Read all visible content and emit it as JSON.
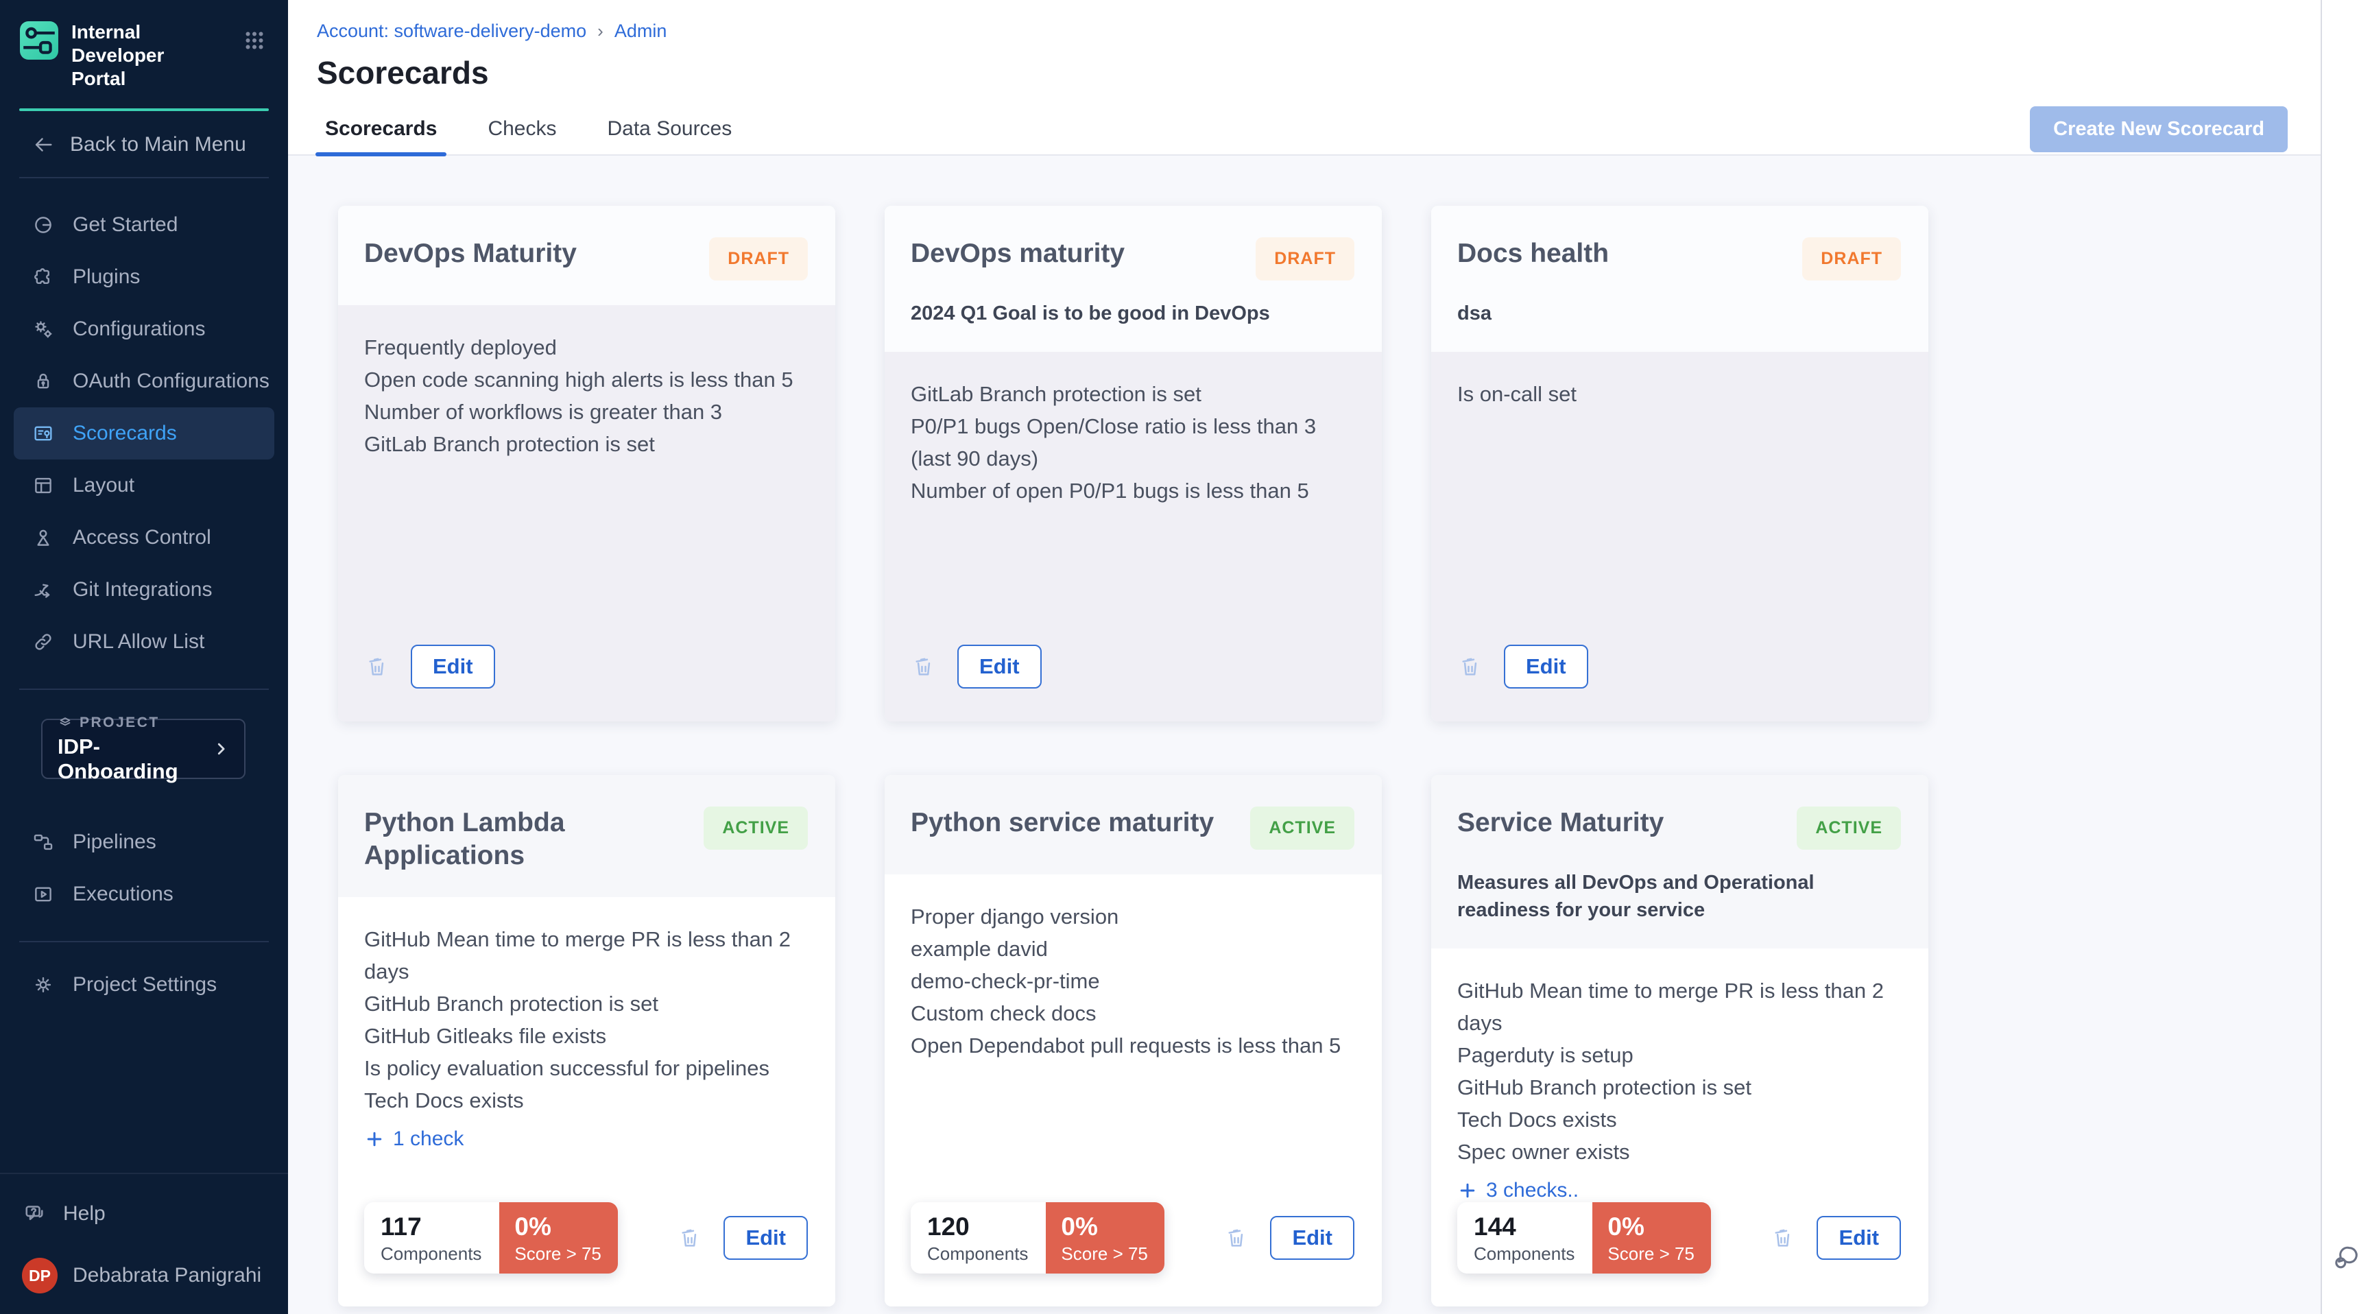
{
  "sidebar": {
    "logo_title": "Internal Developer Portal",
    "back_label": "Back to Main Menu",
    "menu_main": [
      {
        "label": "Get Started",
        "icon": "get-started"
      },
      {
        "label": "Plugins",
        "icon": "plugins"
      },
      {
        "label": "Configurations",
        "icon": "configurations"
      },
      {
        "label": "OAuth Configurations",
        "icon": "oauth"
      },
      {
        "label": "Scorecards",
        "icon": "scorecards",
        "active": true
      },
      {
        "label": "Layout",
        "icon": "layout"
      },
      {
        "label": "Access Control",
        "icon": "access-control"
      },
      {
        "label": "Git Integrations",
        "icon": "git-integrations"
      },
      {
        "label": "URL Allow List",
        "icon": "url-allow-list"
      }
    ],
    "project": {
      "eyebrow": "PROJECT",
      "name": "IDP-Onboarding"
    },
    "menu_project": [
      {
        "label": "Pipelines",
        "icon": "pipelines"
      },
      {
        "label": "Executions",
        "icon": "executions"
      }
    ],
    "menu_settings": [
      {
        "label": "Project Settings",
        "icon": "gear"
      }
    ],
    "help_label": "Help",
    "user": {
      "initials": "DP",
      "name": "Debabrata Panigrahi"
    }
  },
  "header": {
    "breadcrumb": [
      "Account: software-delivery-demo",
      "Admin"
    ],
    "title": "Scorecards"
  },
  "tabs": {
    "items": [
      "Scorecards",
      "Checks",
      "Data Sources"
    ],
    "active": "Scorecards",
    "create_button": "Create New Scorecard"
  },
  "labels": {
    "edit": "Edit",
    "components": "Components",
    "score": "Score > 75"
  },
  "cards": [
    {
      "title": "DevOps Maturity",
      "status": "DRAFT",
      "variant": "draft",
      "description": "",
      "checks": [
        "Frequently deployed",
        "Open code scanning high alerts is less than 5",
        "Number of workflows is greater than 3",
        "GitLab Branch protection is set"
      ]
    },
    {
      "title": "DevOps maturity",
      "status": "DRAFT",
      "variant": "draft",
      "description": "2024 Q1 Goal is to be good in DevOps",
      "checks": [
        "GitLab Branch protection is set",
        "P0/P1 bugs Open/Close ratio is less than 3 (last 90 days)",
        "Number of open P0/P1 bugs is less than 5"
      ]
    },
    {
      "title": "Docs health",
      "status": "DRAFT",
      "variant": "draft",
      "description": "dsa",
      "checks": [
        "Is on-call set"
      ]
    },
    {
      "title": "Python Lambda Applications",
      "status": "ACTIVE",
      "variant": "active",
      "description": "",
      "checks": [
        "GitHub Mean time to merge PR is less than 2 days",
        "GitHub Branch protection is set",
        "GitHub Gitleaks file exists",
        "Is policy evaluation successful for pipelines",
        "Tech Docs exists"
      ],
      "more": "1 check",
      "stats": {
        "components": "117",
        "score_percent": "0%"
      }
    },
    {
      "title": "Python service maturity",
      "status": "ACTIVE",
      "variant": "active",
      "description": "",
      "checks": [
        "Proper django version",
        "example david",
        "demo-check-pr-time",
        "Custom check docs",
        "Open Dependabot pull requests is less than 5"
      ],
      "stats": {
        "components": "120",
        "score_percent": "0%"
      }
    },
    {
      "title": "Service Maturity",
      "status": "ACTIVE",
      "variant": "active",
      "description": "Measures all DevOps and Operational readiness for your service",
      "checks": [
        "GitHub Mean time to merge PR is less than 2 days",
        "Pagerduty is setup",
        "GitHub Branch protection is set",
        "Tech Docs exists",
        "Spec owner exists"
      ],
      "more": "3 checks..",
      "stats": {
        "components": "144",
        "score_percent": "0%"
      }
    }
  ],
  "colors": {
    "sidebar_bg": "#0c1d35",
    "sidebar_active_bg": "#1d3150",
    "sidebar_active_text": "#3fa3f7",
    "teal_accent": "#3ccdb0",
    "link_blue": "#2e6bd8",
    "draft_text": "#f1782e",
    "draft_bg": "#fdf3e9",
    "active_text": "#43a047",
    "active_bg": "#e6f6e3",
    "score_red": "#df624f",
    "create_button_bg": "#9fbbea",
    "avatar_red": "#cb3a28"
  }
}
